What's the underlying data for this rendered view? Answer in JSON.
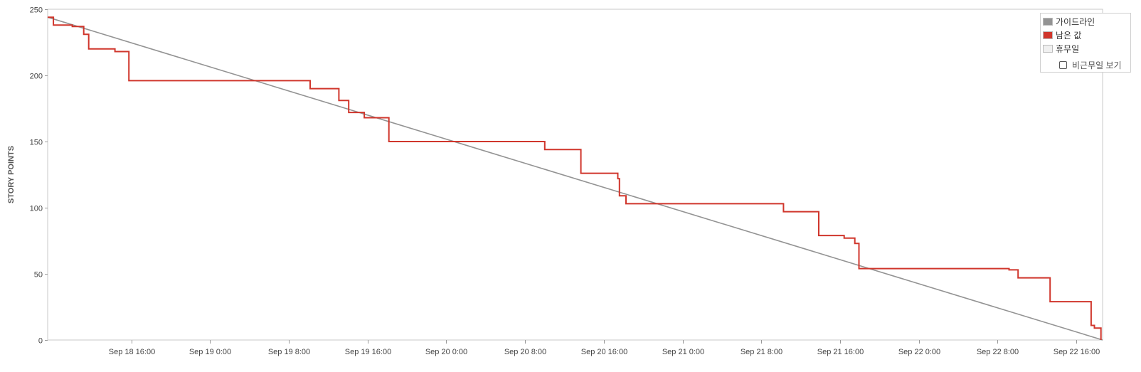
{
  "chart_data": {
    "type": "line",
    "title": "",
    "ylabel": "STORY POINTS",
    "xlabel": "",
    "ylim": [
      0,
      250
    ],
    "xlim": [
      "2025-09-18 07:30",
      "2025-09-22 18:40"
    ],
    "yticks": [
      0,
      50,
      100,
      150,
      200,
      250
    ],
    "xticks": [
      "Sep 18 16:00",
      "Sep 19 0:00",
      "Sep 19 8:00",
      "Sep 19 16:00",
      "Sep 20 0:00",
      "Sep 20 8:00",
      "Sep 20 16:00",
      "Sep 21 0:00",
      "Sep 21 8:00",
      "Sep 21 16:00",
      "Sep 22 0:00",
      "Sep 22 8:00",
      "Sep 22 16:00"
    ],
    "xtick_values": [
      "2025-09-18 16:00",
      "2025-09-19 00:00",
      "2025-09-19 08:00",
      "2025-09-19 16:00",
      "2025-09-20 00:00",
      "2025-09-20 08:00",
      "2025-09-20 16:00",
      "2025-09-21 00:00",
      "2025-09-21 08:00",
      "2025-09-21 16:00",
      "2025-09-22 00:00",
      "2025-09-22 08:00",
      "2025-09-22 16:00"
    ],
    "grid": false,
    "legend_position": "top-right",
    "series": [
      {
        "name": "가이드라인",
        "color": "#939393",
        "step": false,
        "points": [
          {
            "x": "2025-09-18 07:30",
            "y": 244
          },
          {
            "x": "2025-09-22 18:40",
            "y": 0
          }
        ]
      },
      {
        "name": "남은 값",
        "color": "#d0362c",
        "step": true,
        "points": [
          {
            "x": "2025-09-18 07:30",
            "y": 244
          },
          {
            "x": "2025-09-18 08:05",
            "y": 238
          },
          {
            "x": "2025-09-18 10:00",
            "y": 237
          },
          {
            "x": "2025-09-18 11:10",
            "y": 231
          },
          {
            "x": "2025-09-18 11:40",
            "y": 220
          },
          {
            "x": "2025-09-18 14:20",
            "y": 218
          },
          {
            "x": "2025-09-18 15:45",
            "y": 196
          },
          {
            "x": "2025-09-19 10:10",
            "y": 190
          },
          {
            "x": "2025-09-19 13:05",
            "y": 181
          },
          {
            "x": "2025-09-19 14:05",
            "y": 172
          },
          {
            "x": "2025-09-19 15:40",
            "y": 168
          },
          {
            "x": "2025-09-19 18:10",
            "y": 150
          },
          {
            "x": "2025-09-20 10:00",
            "y": 144
          },
          {
            "x": "2025-09-20 13:40",
            "y": 126
          },
          {
            "x": "2025-09-20 17:25",
            "y": 122
          },
          {
            "x": "2025-09-20 17:35",
            "y": 109
          },
          {
            "x": "2025-09-20 18:15",
            "y": 103
          },
          {
            "x": "2025-09-21 10:15",
            "y": 97
          },
          {
            "x": "2025-09-21 13:50",
            "y": 79
          },
          {
            "x": "2025-09-21 16:25",
            "y": 77
          },
          {
            "x": "2025-09-21 17:30",
            "y": 73
          },
          {
            "x": "2025-09-21 17:55",
            "y": 54
          },
          {
            "x": "2025-09-22 09:10",
            "y": 53
          },
          {
            "x": "2025-09-22 10:05",
            "y": 47
          },
          {
            "x": "2025-09-22 13:20",
            "y": 29
          },
          {
            "x": "2025-09-22 17:30",
            "y": 11
          },
          {
            "x": "2025-09-22 17:50",
            "y": 9
          },
          {
            "x": "2025-09-22 18:30",
            "y": 0
          }
        ]
      },
      {
        "name": "휴무일",
        "color": "#f0f0f0",
        "points": []
      }
    ]
  },
  "legend": {
    "items": [
      {
        "label": "가이드라인",
        "color": "#939393"
      },
      {
        "label": "남은 값",
        "color": "#d0362c"
      },
      {
        "label": "휴무일",
        "color": "#f0f0f0"
      }
    ],
    "toggle_label": "비근무일 보기",
    "toggle_checked": false
  }
}
